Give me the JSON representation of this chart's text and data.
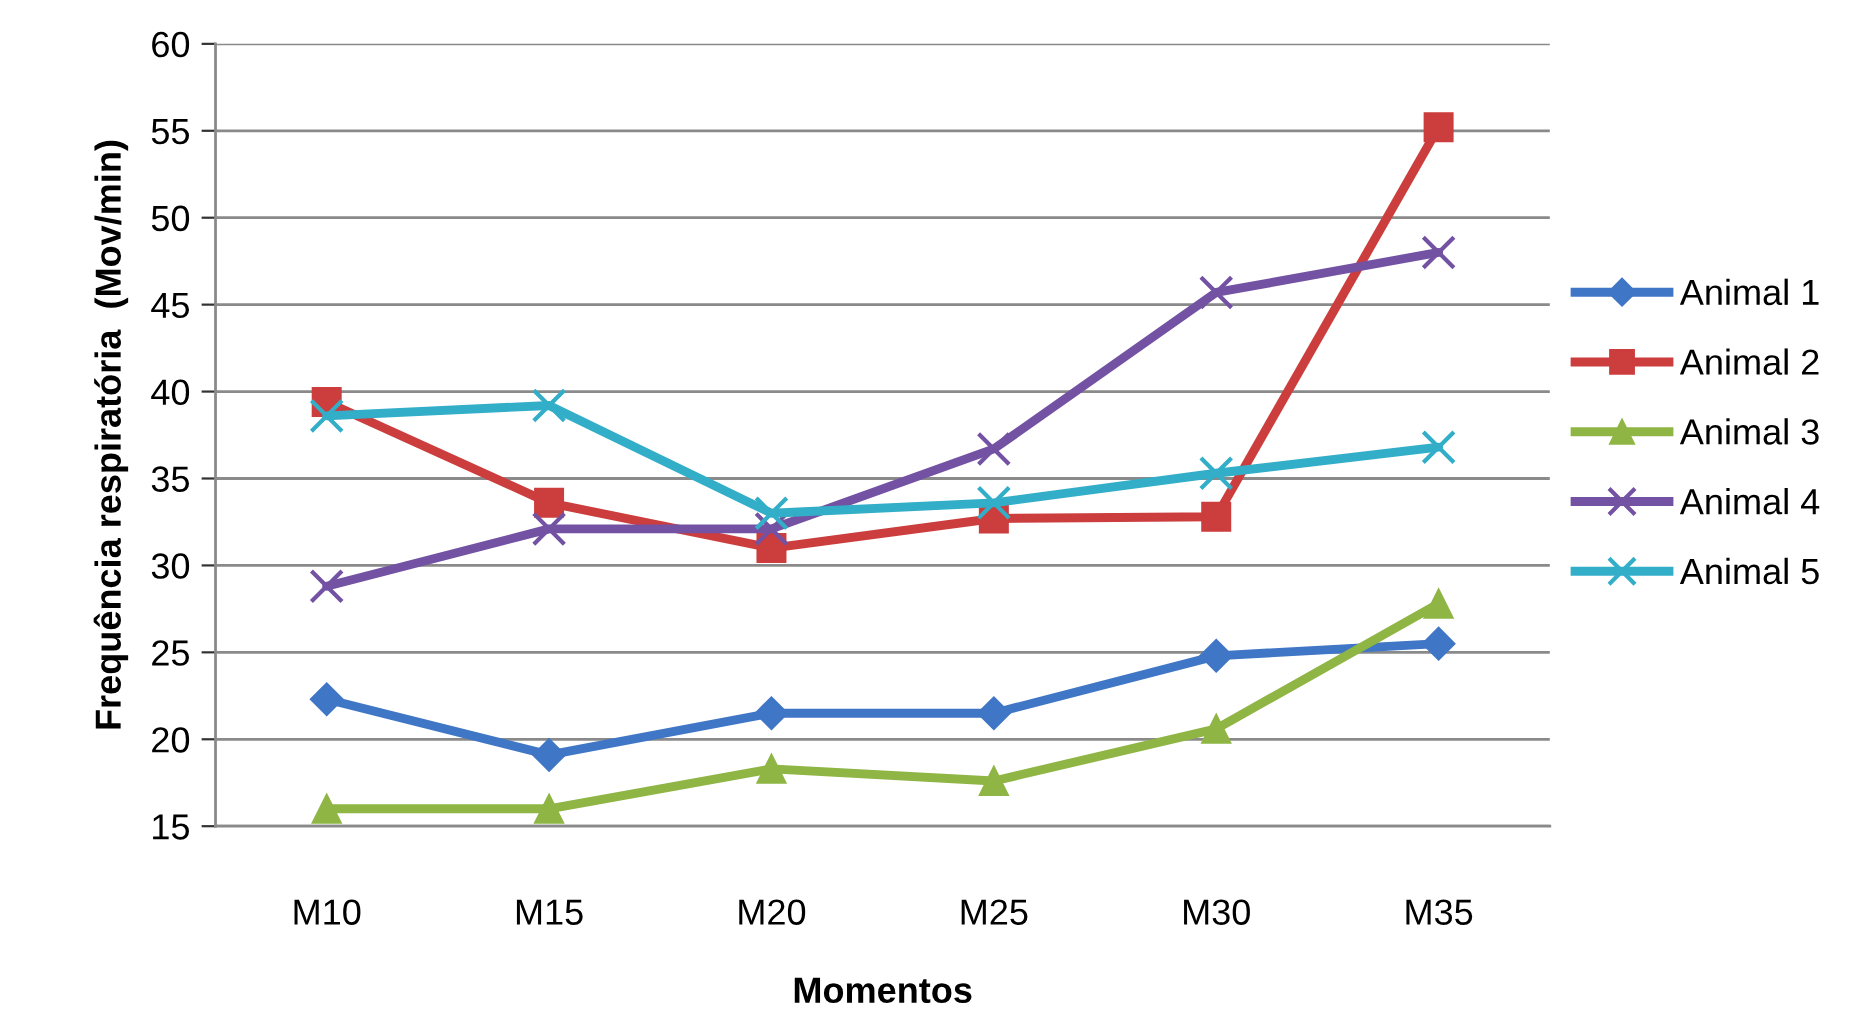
{
  "chart_data": {
    "type": "line",
    "xlabel": "Momentos",
    "ylabel": "Frequência respiratória  (Mov/min)",
    "categories": [
      "M10",
      "M15",
      "M20",
      "M25",
      "M30",
      "M35"
    ],
    "series": [
      {
        "name": "Animal 1",
        "color": "#3f76c6",
        "marker": "diamond",
        "values": [
          22.3,
          19.1,
          21.5,
          21.5,
          24.8,
          25.5
        ]
      },
      {
        "name": "Animal 2",
        "color": "#cc3d3d",
        "marker": "square",
        "values": [
          39.4,
          33.6,
          31.0,
          32.7,
          32.8,
          55.2
        ]
      },
      {
        "name": "Animal 3",
        "color": "#8fb544",
        "marker": "triangle",
        "values": [
          16.0,
          16.0,
          18.3,
          17.6,
          20.6,
          27.8
        ]
      },
      {
        "name": "Animal 4",
        "color": "#7352a3",
        "marker": "cross",
        "values": [
          28.8,
          32.1,
          32.1,
          36.7,
          45.7,
          48.0
        ]
      },
      {
        "name": "Animal 5",
        "color": "#33aec8",
        "marker": "cross",
        "values": [
          38.6,
          39.2,
          33.0,
          33.6,
          35.3,
          36.8
        ]
      }
    ],
    "ylim": [
      15,
      60
    ],
    "yticks": [
      15,
      20,
      25,
      30,
      35,
      40,
      45,
      50,
      55,
      60
    ],
    "grid": "y",
    "legend": "right",
    "line_style": "solid"
  }
}
